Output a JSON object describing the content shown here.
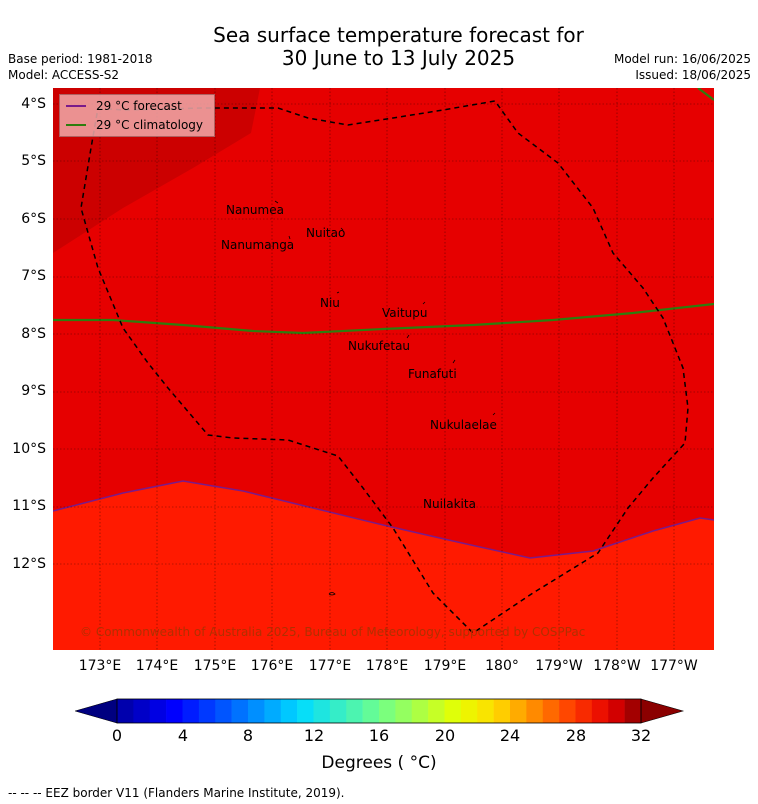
{
  "header": {
    "title_line1": "Sea surface temperature forecast for",
    "title_line2": "30 June to 13 July 2025",
    "base_period": "Base period: 1981-2018",
    "model": "Model: ACCESS-S2",
    "model_run": "Model run: 16/06/2025",
    "issued": "Issued: 18/06/2025"
  },
  "legend": {
    "forecast": "29 °C  forecast",
    "climatology": "29 °C  climatology"
  },
  "colors": {
    "band_28_29": "#ff1a00",
    "band_29_30": "#e60000",
    "band_30_31": "#cc0000",
    "forecast_line": "#7a1a8a",
    "climatology_line": "#2e7d0e"
  },
  "axes": {
    "lat_labels": [
      "4°S",
      "5°S",
      "6°S",
      "7°S",
      "8°S",
      "9°S",
      "10°S",
      "11°S",
      "12°S"
    ],
    "lon_labels": [
      "173°E",
      "174°E",
      "175°E",
      "176°E",
      "177°E",
      "178°E",
      "179°E",
      "180°",
      "179°W",
      "178°W",
      "177°W"
    ]
  },
  "places": [
    {
      "name": "Nanumea"
    },
    {
      "name": "Nuitao"
    },
    {
      "name": "Nanumanga"
    },
    {
      "name": "Niu"
    },
    {
      "name": "Vaitupu"
    },
    {
      "name": "Nukufetau"
    },
    {
      "name": "Funafuti"
    },
    {
      "name": "Nukulaelae"
    },
    {
      "name": "Nuilakita"
    }
  ],
  "copyright": "© Commonwealth of Australia 2025, Bureau of Meteorology, supported by COSPPac",
  "colorbar": {
    "ticks": [
      "0",
      "4",
      "8",
      "12",
      "16",
      "20",
      "24",
      "28",
      "32"
    ],
    "label": "Degrees ( °C)"
  },
  "footer": "--  --  -- EEZ border V11 (Flanders Marine Institute, 2019)."
}
